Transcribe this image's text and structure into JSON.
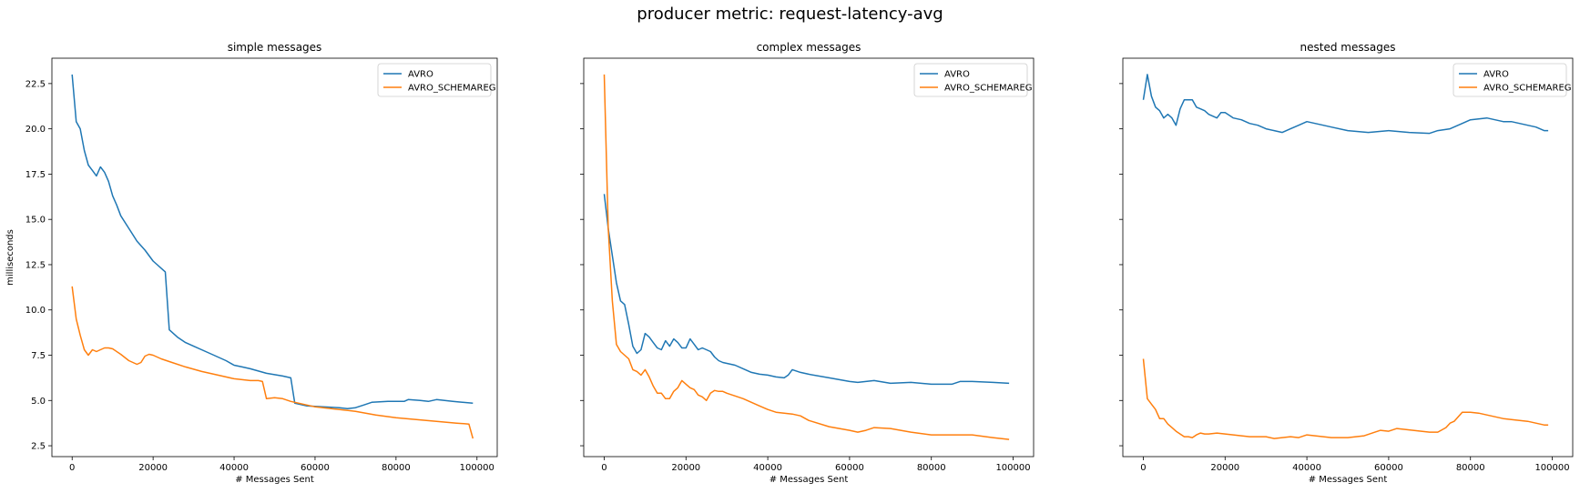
{
  "suptitle": "producer metric: request-latency-avg",
  "chart_data": [
    {
      "type": "line",
      "title": "simple messages",
      "xlabel": "# Messages Sent",
      "ylabel": "milliseconds",
      "xlim": [
        -5000,
        105000
      ],
      "ylim": [
        1.9,
        23.9
      ],
      "xticks": [
        0,
        20000,
        40000,
        60000,
        80000,
        100000
      ],
      "yticks": [
        2.5,
        5.0,
        7.5,
        10.0,
        12.5,
        15.0,
        17.5,
        20.0,
        22.5
      ],
      "ytick_labels_visible": true,
      "legend": "top-right",
      "series": [
        {
          "name": "AVRO",
          "color": "#1f77b4",
          "x": [
            0,
            1000,
            2000,
            3000,
            4000,
            5000,
            6000,
            7000,
            8000,
            9000,
            10000,
            11000,
            12000,
            14000,
            16000,
            18000,
            20000,
            21000,
            22000,
            23000,
            24000,
            26000,
            28000,
            30000,
            34000,
            38000,
            40000,
            42000,
            44000,
            48000,
            52000,
            54000,
            55000,
            58000,
            62000,
            66000,
            68000,
            70000,
            72000,
            74000,
            78000,
            82000,
            83000,
            86000,
            88000,
            90000,
            94000,
            99000
          ],
          "y": [
            23.0,
            20.4,
            20.0,
            18.8,
            18.0,
            17.7,
            17.4,
            17.9,
            17.6,
            17.1,
            16.3,
            15.8,
            15.2,
            14.5,
            13.8,
            13.3,
            12.7,
            12.5,
            12.3,
            12.1,
            8.9,
            8.5,
            8.2,
            8.0,
            7.6,
            7.2,
            6.95,
            6.85,
            6.75,
            6.5,
            6.35,
            6.25,
            4.85,
            4.7,
            4.65,
            4.6,
            4.55,
            4.6,
            4.75,
            4.9,
            4.95,
            4.95,
            5.05,
            5.0,
            4.95,
            5.05,
            4.95,
            4.85
          ]
        },
        {
          "name": "AVRO_SCHEMAREG",
          "color": "#ff7f0e",
          "x": [
            0,
            1000,
            2000,
            3000,
            4000,
            5000,
            6000,
            7000,
            8000,
            9000,
            10000,
            12000,
            14000,
            16000,
            17000,
            18000,
            19000,
            20000,
            22000,
            24000,
            28000,
            32000,
            36000,
            40000,
            42000,
            44000,
            46000,
            47000,
            48000,
            50000,
            52000,
            54000,
            56000,
            58000,
            60000,
            64000,
            70000,
            75000,
            80000,
            85000,
            90000,
            95000,
            98000,
            99000
          ],
          "y": [
            11.3,
            9.5,
            8.6,
            7.8,
            7.5,
            7.8,
            7.7,
            7.8,
            7.9,
            7.9,
            7.85,
            7.55,
            7.2,
            7.0,
            7.1,
            7.45,
            7.55,
            7.5,
            7.3,
            7.15,
            6.85,
            6.6,
            6.4,
            6.2,
            6.15,
            6.1,
            6.1,
            6.05,
            5.1,
            5.15,
            5.1,
            4.95,
            4.85,
            4.75,
            4.65,
            4.55,
            4.4,
            4.2,
            4.05,
            3.95,
            3.85,
            3.75,
            3.7,
            2.9
          ]
        }
      ]
    },
    {
      "type": "line",
      "title": "complex messages",
      "xlabel": "# Messages Sent",
      "ylabel": "",
      "xlim": [
        -5000,
        105000
      ],
      "ylim": [
        1.9,
        23.9
      ],
      "xticks": [
        0,
        20000,
        40000,
        60000,
        80000,
        100000
      ],
      "yticks": [
        2.5,
        5.0,
        7.5,
        10.0,
        12.5,
        15.0,
        17.5,
        20.0,
        22.5
      ],
      "ytick_labels_visible": false,
      "legend": "top-right",
      "series": [
        {
          "name": "AVRO",
          "color": "#1f77b4",
          "x": [
            0,
            1000,
            2000,
            3000,
            4000,
            5000,
            6000,
            7000,
            8000,
            9000,
            10000,
            11000,
            12000,
            13000,
            14000,
            15000,
            16000,
            17000,
            18000,
            19000,
            20000,
            21000,
            22000,
            23000,
            24000,
            25000,
            26000,
            27000,
            28000,
            29000,
            30000,
            32000,
            34000,
            36000,
            38000,
            40000,
            42000,
            44000,
            45000,
            46000,
            48000,
            50000,
            55000,
            60000,
            62000,
            64000,
            66000,
            70000,
            75000,
            80000,
            85000,
            87000,
            90000,
            95000,
            99000
          ],
          "y": [
            16.4,
            14.5,
            13.0,
            11.5,
            10.5,
            10.3,
            9.2,
            8.0,
            7.6,
            7.8,
            8.7,
            8.5,
            8.2,
            7.9,
            7.8,
            8.3,
            8.0,
            8.4,
            8.2,
            7.9,
            7.9,
            8.4,
            8.1,
            7.8,
            7.9,
            7.8,
            7.7,
            7.4,
            7.2,
            7.1,
            7.05,
            6.95,
            6.75,
            6.55,
            6.45,
            6.4,
            6.3,
            6.25,
            6.4,
            6.7,
            6.55,
            6.45,
            6.25,
            6.05,
            6.0,
            6.05,
            6.1,
            5.95,
            6.0,
            5.9,
            5.9,
            6.05,
            6.05,
            6.0,
            5.95
          ]
        },
        {
          "name": "AVRO_SCHEMAREG",
          "color": "#ff7f0e",
          "x": [
            0,
            1000,
            2000,
            3000,
            4000,
            5000,
            6000,
            7000,
            8000,
            9000,
            10000,
            11000,
            12000,
            13000,
            14000,
            15000,
            16000,
            17000,
            18000,
            19000,
            20000,
            21000,
            22000,
            23000,
            24000,
            25000,
            26000,
            27000,
            28000,
            29000,
            30000,
            32000,
            34000,
            36000,
            38000,
            40000,
            42000,
            44000,
            46000,
            48000,
            50000,
            55000,
            60000,
            62000,
            64000,
            66000,
            70000,
            75000,
            80000,
            85000,
            90000,
            95000,
            99000
          ],
          "y": [
            23.0,
            14.5,
            10.5,
            8.1,
            7.7,
            7.5,
            7.3,
            6.7,
            6.6,
            6.4,
            6.7,
            6.3,
            5.8,
            5.4,
            5.4,
            5.1,
            5.1,
            5.5,
            5.7,
            6.1,
            5.9,
            5.7,
            5.6,
            5.3,
            5.2,
            5.0,
            5.4,
            5.55,
            5.5,
            5.5,
            5.4,
            5.25,
            5.1,
            4.9,
            4.7,
            4.5,
            4.35,
            4.3,
            4.25,
            4.15,
            3.9,
            3.55,
            3.35,
            3.25,
            3.35,
            3.5,
            3.45,
            3.25,
            3.1,
            3.1,
            3.1,
            2.95,
            2.85
          ]
        }
      ]
    },
    {
      "type": "line",
      "title": "nested messages",
      "xlabel": "# Messages Sent",
      "ylabel": "",
      "xlim": [
        -5000,
        105000
      ],
      "ylim": [
        1.9,
        23.9
      ],
      "xticks": [
        0,
        20000,
        40000,
        60000,
        80000,
        100000
      ],
      "yticks": [
        2.5,
        5.0,
        7.5,
        10.0,
        12.5,
        15.0,
        17.5,
        20.0,
        22.5
      ],
      "ytick_labels_visible": false,
      "legend": "top-right",
      "series": [
        {
          "name": "AVRO",
          "color": "#1f77b4",
          "x": [
            0,
            1000,
            2000,
            3000,
            4000,
            5000,
            6000,
            7000,
            8000,
            9000,
            10000,
            11000,
            12000,
            13000,
            14000,
            15000,
            16000,
            17000,
            18000,
            19000,
            20000,
            22000,
            24000,
            26000,
            28000,
            30000,
            32000,
            34000,
            36000,
            38000,
            40000,
            42000,
            44000,
            46000,
            50000,
            55000,
            60000,
            65000,
            70000,
            72000,
            75000,
            78000,
            80000,
            82000,
            84000,
            86000,
            88000,
            90000,
            92000,
            94000,
            96000,
            98000,
            99000
          ],
          "y": [
            21.6,
            23.0,
            21.8,
            21.2,
            21.0,
            20.6,
            20.8,
            20.6,
            20.2,
            21.1,
            21.6,
            21.6,
            21.6,
            21.2,
            21.1,
            21.0,
            20.8,
            20.7,
            20.6,
            20.9,
            20.9,
            20.6,
            20.5,
            20.3,
            20.2,
            20.0,
            19.9,
            19.8,
            20.0,
            20.2,
            20.4,
            20.3,
            20.2,
            20.1,
            19.9,
            19.8,
            19.9,
            19.8,
            19.75,
            19.9,
            20.0,
            20.3,
            20.5,
            20.55,
            20.6,
            20.5,
            20.4,
            20.4,
            20.3,
            20.2,
            20.1,
            19.9,
            19.9
          ]
        },
        {
          "name": "AVRO_SCHEMAREG",
          "color": "#ff7f0e",
          "x": [
            0,
            1000,
            2000,
            3000,
            4000,
            5000,
            6000,
            7000,
            8000,
            9000,
            10000,
            11000,
            12000,
            13000,
            14000,
            15000,
            16000,
            18000,
            20000,
            22000,
            24000,
            26000,
            28000,
            30000,
            32000,
            34000,
            36000,
            38000,
            40000,
            42000,
            44000,
            46000,
            48000,
            50000,
            52000,
            54000,
            56000,
            58000,
            60000,
            62000,
            64000,
            66000,
            68000,
            70000,
            72000,
            74000,
            75000,
            76000,
            78000,
            80000,
            82000,
            84000,
            86000,
            88000,
            90000,
            92000,
            94000,
            96000,
            98000,
            99000
          ],
          "y": [
            7.3,
            5.1,
            4.8,
            4.5,
            4.0,
            4.0,
            3.7,
            3.5,
            3.3,
            3.15,
            3.0,
            3.0,
            2.95,
            3.1,
            3.2,
            3.15,
            3.15,
            3.2,
            3.15,
            3.1,
            3.05,
            3.0,
            3.0,
            3.0,
            2.9,
            2.95,
            3.0,
            2.95,
            3.1,
            3.05,
            3.0,
            2.95,
            2.95,
            2.95,
            3.0,
            3.05,
            3.2,
            3.35,
            3.3,
            3.45,
            3.4,
            3.35,
            3.3,
            3.25,
            3.25,
            3.5,
            3.75,
            3.85,
            4.35,
            4.35,
            4.3,
            4.2,
            4.1,
            4.0,
            3.95,
            3.9,
            3.85,
            3.75,
            3.65,
            3.65
          ]
        }
      ]
    }
  ]
}
